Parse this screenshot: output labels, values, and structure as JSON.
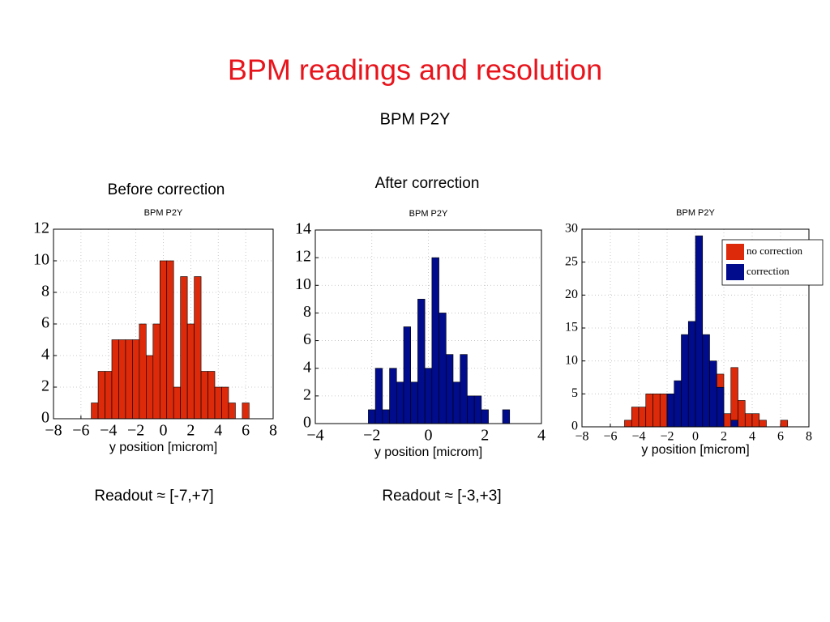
{
  "slide": {
    "title": "BPM readings and resolution",
    "subtitle": "BPM P2Y",
    "labels": [
      "Before correction",
      "After correction"
    ],
    "readouts": [
      "Readout ≈ [-7,+7]",
      "Readout ≈ [-3,+3]"
    ]
  },
  "chart_data": [
    {
      "type": "histogram",
      "title": "BPM P2Y",
      "x_label": "y position [microm]",
      "color": "#dd2a0a",
      "grid": true,
      "bins": [
        -5.25,
        -4.75,
        -4.25,
        -3.75,
        -3.25,
        -2.75,
        -2.25,
        -1.75,
        -1.25,
        -0.75,
        -0.25,
        0.25,
        0.75,
        1.25,
        1.75,
        2.25,
        2.75,
        3.25,
        3.75,
        4.25,
        4.75,
        5.25,
        5.75,
        6.25
      ],
      "values": [
        1,
        3,
        3,
        5,
        5,
        5,
        5,
        6,
        4,
        6,
        10,
        10,
        2,
        9,
        6,
        9,
        3,
        3,
        2,
        2,
        1,
        0,
        1
      ],
      "xlim": [
        -8,
        8
      ],
      "xticks": [
        {
          "value": -8,
          "label": "−8"
        },
        {
          "value": -6,
          "label": "−6"
        },
        {
          "value": -4,
          "label": "−4"
        },
        {
          "value": -2,
          "label": "−2"
        },
        0,
        2,
        4,
        6,
        8
      ],
      "ylim": [
        0,
        12
      ],
      "yticks": [
        0,
        2,
        4,
        6,
        8,
        10,
        12
      ]
    },
    {
      "type": "histogram",
      "title": "BPM P2Y",
      "x_label": "y position [microm]",
      "color": "#000c8c",
      "grid": true,
      "bins": [
        -2.125,
        -1.875,
        -1.625,
        -1.375,
        -1.125,
        -0.875,
        -0.625,
        -0.375,
        -0.125,
        0.125,
        0.375,
        0.625,
        0.875,
        1.125,
        1.375,
        1.625,
        1.875,
        2.125,
        2.375,
        2.625,
        2.875
      ],
      "values": [
        1,
        4,
        1,
        4,
        3,
        7,
        3,
        9,
        4,
        12,
        8,
        5,
        3,
        5,
        2,
        2,
        1,
        0,
        0,
        1
      ],
      "xlim": [
        -4,
        4
      ],
      "xticks": [
        {
          "value": -4,
          "label": "−4"
        },
        {
          "value": -2,
          "label": "−2"
        },
        0,
        2,
        4
      ],
      "ylim": [
        0,
        14
      ],
      "yticks": [
        0,
        2,
        4,
        6,
        8,
        10,
        12,
        14
      ]
    },
    {
      "type": "histogram",
      "title": "BPM P2Y",
      "x_label": "y position [microm]",
      "grid": true,
      "legend": "upper right",
      "bins": [
        -5,
        -4.5,
        -4,
        -3.5,
        -3,
        -2.5,
        -2,
        -1.5,
        -1,
        -0.5,
        0,
        0.5,
        1,
        1.5,
        2,
        2.5,
        3,
        3.5,
        4,
        4.5,
        5,
        5.5,
        6,
        6.5
      ],
      "series": [
        {
          "name": "no correction",
          "color": "#dd2a0a",
          "values": [
            1,
            3,
            3,
            5,
            5,
            5,
            5,
            5,
            6,
            4,
            9,
            6,
            7,
            8,
            2,
            9,
            4,
            2,
            2,
            1,
            0,
            0,
            1
          ]
        },
        {
          "name": "correction",
          "color": "#000c8c",
          "values": [
            0,
            0,
            0,
            0,
            0,
            0,
            5,
            7,
            14,
            16,
            29,
            14,
            10,
            6,
            0,
            1,
            0,
            0,
            0,
            0,
            0,
            0,
            0
          ]
        }
      ],
      "xlim": [
        -8,
        8
      ],
      "xticks": [
        {
          "value": -8,
          "label": "−8"
        },
        {
          "value": -6,
          "label": "−6"
        },
        {
          "value": -4,
          "label": "−4"
        },
        {
          "value": -2,
          "label": "−2"
        },
        0,
        2,
        4,
        6,
        8
      ],
      "ylim": [
        0,
        30
      ],
      "yticks": [
        0,
        5,
        10,
        15,
        20,
        25,
        30
      ]
    }
  ]
}
